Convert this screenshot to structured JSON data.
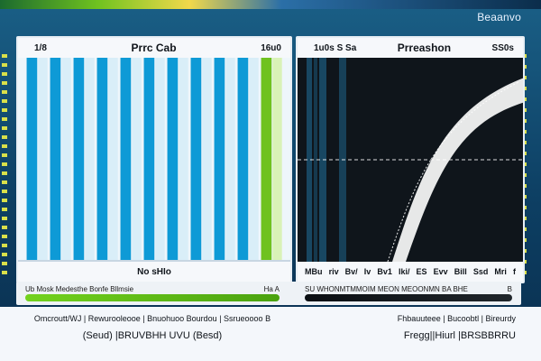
{
  "window": {
    "title_right": "Beaanvo"
  },
  "left_panel": {
    "top_left": "1/8",
    "title": "Prrc Cab",
    "top_right": "16u0",
    "footer": "No sHIo",
    "chart_data": {
      "type": "bar",
      "categories": [
        "",
        "",
        "",
        "",
        "",
        "",
        "",
        "",
        "",
        "",
        ""
      ],
      "values": [
        1,
        1,
        1,
        1,
        1,
        1,
        1,
        1,
        1,
        1,
        1
      ],
      "highlight_index": 10
    }
  },
  "right_panel": {
    "top_left": "1u0s  S Sa",
    "title": "Prreashon",
    "top_right": "SS0s",
    "footer_labels": [
      "MBu",
      "riv",
      "Bv/",
      "Iv",
      "Bv1",
      "Iki/",
      "ES",
      "Evv",
      "Bill",
      "Ssd",
      "Mri",
      "f"
    ],
    "chart_data": {
      "type": "line",
      "threshold_ratio": 0.5
    }
  },
  "strip": {
    "left_text": "Ub Mosk Medesthe Bonfe Bllmsie",
    "left_right_text": "Ha A",
    "right_text": "SU WHONMTMMOIM MEON MEOONMN BA BHE",
    "right_right_text": "B"
  },
  "bottom": {
    "left_line1": "Omcroutt/WJ  | Rewurooleooe  | Bnuohuoo Bourdou  | Ssrueoooo B",
    "left_line2": "(Seud)  |BRUVBHH UVU  (Besd)",
    "right_line1": "Fhbauuteee  | Bucoobtl  | Bireurdy",
    "right_line2": "Fregg||Hiurl  |BRSBBRRU"
  },
  "colors": {
    "accent_green": "#6fc21f",
    "bar_blue": "#0e9ad6",
    "bar_pale": "#d9eef8",
    "dark_panel": "#111a22"
  }
}
